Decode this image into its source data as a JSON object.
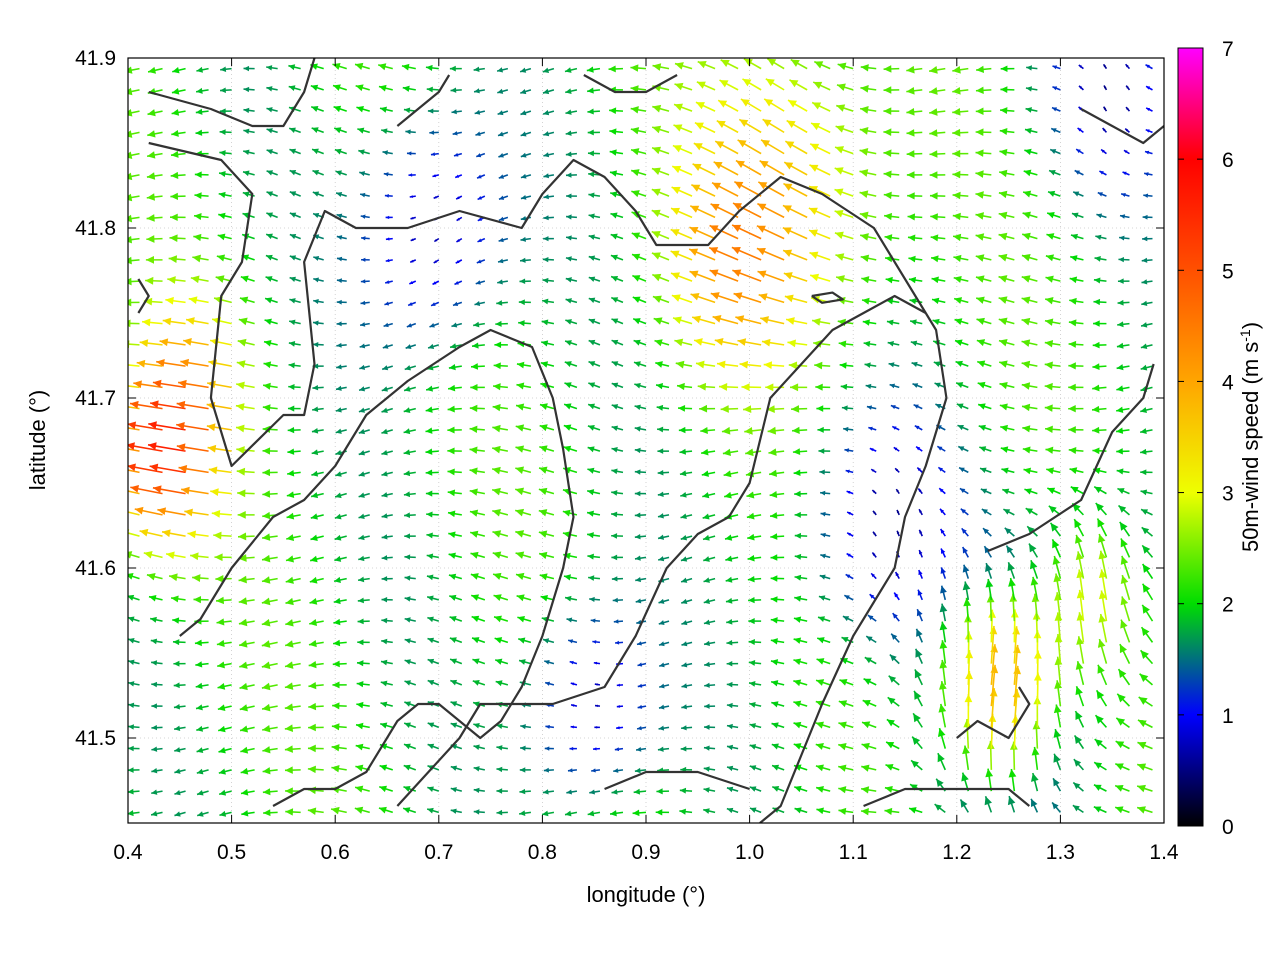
{
  "chart_data": {
    "type": "vector field",
    "xlabel": "longitude (°)",
    "ylabel": "latitude (°)",
    "xlim": [
      0.4,
      1.4
    ],
    "ylim": [
      41.45,
      41.9
    ],
    "xticks": [
      0.4,
      0.5,
      0.6,
      0.7,
      0.8,
      0.9,
      1.0,
      1.1,
      1.2,
      1.3,
      1.4
    ],
    "xtick_labels": [
      "0.4",
      "0.5",
      "0.6",
      "0.7",
      "0.8",
      "0.9",
      "1.0",
      "1.1",
      "1.2",
      "1.3",
      "1.4"
    ],
    "yticks": [
      41.5,
      41.6,
      41.7,
      41.8,
      41.9
    ],
    "ytick_labels": [
      "41.5",
      "41.6",
      "41.7",
      "41.8",
      "41.9"
    ],
    "grid": "dotted",
    "colorbar": {
      "label_main": "50m-wind speed (m s",
      "label_sup": "-1",
      "label_end": ")",
      "min": 0,
      "max": 7,
      "ticks": [
        0,
        1,
        2,
        3,
        4,
        5,
        6,
        7
      ],
      "tick_labels": [
        "0",
        "1",
        "2",
        "3",
        "4",
        "5",
        "6",
        "7"
      ],
      "palette": [
        {
          "v": 0,
          "c": "#000000"
        },
        {
          "v": 1,
          "c": "#0000ff"
        },
        {
          "v": 2,
          "c": "#00dd00"
        },
        {
          "v": 3,
          "c": "#eeff00"
        },
        {
          "v": 4,
          "c": "#ffa500"
        },
        {
          "v": 5,
          "c": "#ff5000"
        },
        {
          "v": 6,
          "c": "#ff0000"
        },
        {
          "v": 7,
          "c": "#ff00ff"
        }
      ]
    },
    "vector_field": {
      "nx": 45,
      "ny": 36,
      "arrow_length_per_ms": 0.0065,
      "base_wind": {
        "u": -2.0,
        "v": 0.05
      },
      "features": [
        {
          "lon": 0.44,
          "lat": 41.66,
          "r": 0.05,
          "du": -3.0,
          "dv": 0.2
        },
        {
          "lon": 0.47,
          "lat": 41.71,
          "r": 0.05,
          "du": -1.5,
          "dv": 0.0
        },
        {
          "lon": 1.05,
          "lat": 41.82,
          "r": 0.09,
          "du": -1.5,
          "dv": 1.2
        },
        {
          "lon": 0.99,
          "lat": 41.77,
          "r": 0.06,
          "du": -1.2,
          "dv": 0.4
        },
        {
          "lon": 1.24,
          "lat": 41.52,
          "r": 0.07,
          "du": 2.2,
          "dv": 4.0
        },
        {
          "lon": 1.34,
          "lat": 41.58,
          "r": 0.06,
          "du": 1.5,
          "dv": 2.8
        },
        {
          "lon": 0.7,
          "lat": 41.8,
          "r": 0.07,
          "du": 1.7,
          "dv": 0.0
        },
        {
          "lon": 0.85,
          "lat": 41.52,
          "r": 0.06,
          "du": 1.6,
          "dv": 0.3
        },
        {
          "lon": 1.13,
          "lat": 41.62,
          "r": 0.07,
          "du": 1.6,
          "dv": 0.0
        },
        {
          "lon": 1.35,
          "lat": 41.88,
          "r": 0.06,
          "du": 1.3,
          "dv": 0.0
        }
      ]
    },
    "contours": [
      [
        [
          0.42,
          41.88
        ],
        [
          0.48,
          41.87
        ],
        [
          0.52,
          41.86
        ],
        [
          0.55,
          41.86
        ],
        [
          0.57,
          41.88
        ],
        [
          0.58,
          41.9
        ]
      ],
      [
        [
          0.42,
          41.85
        ],
        [
          0.49,
          41.84
        ],
        [
          0.52,
          41.82
        ],
        [
          0.51,
          41.78
        ],
        [
          0.49,
          41.76
        ],
        [
          0.48,
          41.7
        ],
        [
          0.49,
          41.68
        ],
        [
          0.5,
          41.66
        ],
        [
          0.55,
          41.69
        ],
        [
          0.57,
          41.69
        ],
        [
          0.58,
          41.72
        ],
        [
          0.57,
          41.78
        ],
        [
          0.59,
          41.81
        ],
        [
          0.62,
          41.8
        ],
        [
          0.67,
          41.8
        ],
        [
          0.72,
          41.81
        ],
        [
          0.78,
          41.8
        ],
        [
          0.8,
          41.82
        ],
        [
          0.83,
          41.84
        ],
        [
          0.86,
          41.83
        ],
        [
          0.89,
          41.81
        ],
        [
          0.91,
          41.79
        ],
        [
          0.96,
          41.79
        ],
        [
          0.99,
          41.81
        ],
        [
          1.03,
          41.83
        ],
        [
          1.07,
          41.82
        ],
        [
          1.12,
          41.8
        ],
        [
          1.15,
          41.77
        ],
        [
          1.18,
          41.74
        ],
        [
          1.19,
          41.7
        ],
        [
          1.17,
          41.66
        ],
        [
          1.15,
          41.63
        ],
        [
          1.14,
          41.6
        ],
        [
          1.12,
          41.58
        ],
        [
          1.1,
          41.56
        ],
        [
          1.07,
          41.52
        ],
        [
          1.05,
          41.49
        ],
        [
          1.03,
          41.46
        ],
        [
          1.01,
          41.45
        ]
      ],
      [
        [
          0.45,
          41.56
        ],
        [
          0.47,
          41.57
        ],
        [
          0.5,
          41.6
        ],
        [
          0.54,
          41.63
        ],
        [
          0.57,
          41.64
        ],
        [
          0.6,
          41.66
        ],
        [
          0.63,
          41.69
        ],
        [
          0.67,
          41.71
        ],
        [
          0.72,
          41.73
        ],
        [
          0.75,
          41.74
        ],
        [
          0.79,
          41.73
        ],
        [
          0.81,
          41.7
        ],
        [
          0.82,
          41.67
        ],
        [
          0.83,
          41.63
        ],
        [
          0.82,
          41.6
        ],
        [
          0.8,
          41.56
        ],
        [
          0.78,
          41.53
        ],
        [
          0.76,
          41.51
        ],
        [
          0.74,
          41.5
        ],
        [
          0.72,
          41.51
        ],
        [
          0.7,
          41.52
        ],
        [
          0.68,
          41.52
        ],
        [
          0.66,
          41.51
        ],
        [
          0.63,
          41.48
        ],
        [
          0.6,
          41.47
        ],
        [
          0.57,
          41.47
        ],
        [
          0.54,
          41.46
        ]
      ],
      [
        [
          0.66,
          41.46
        ],
        [
          0.69,
          41.48
        ],
        [
          0.72,
          41.5
        ],
        [
          0.74,
          41.52
        ],
        [
          0.77,
          41.52
        ],
        [
          0.81,
          41.52
        ],
        [
          0.86,
          41.53
        ],
        [
          0.89,
          41.56
        ],
        [
          0.92,
          41.6
        ],
        [
          0.95,
          41.62
        ],
        [
          0.98,
          41.63
        ],
        [
          1.0,
          41.65
        ],
        [
          1.02,
          41.7
        ],
        [
          1.05,
          41.72
        ],
        [
          1.08,
          41.74
        ],
        [
          1.11,
          41.75
        ],
        [
          1.14,
          41.76
        ],
        [
          1.17,
          41.75
        ]
      ],
      [
        [
          0.86,
          41.47
        ],
        [
          0.9,
          41.48
        ],
        [
          0.95,
          41.48
        ],
        [
          1.0,
          41.47
        ]
      ],
      [
        [
          1.11,
          41.46
        ],
        [
          1.15,
          41.47
        ],
        [
          1.2,
          41.47
        ],
        [
          1.25,
          41.47
        ],
        [
          1.27,
          41.46
        ]
      ],
      [
        [
          1.23,
          41.61
        ],
        [
          1.27,
          41.62
        ],
        [
          1.32,
          41.64
        ],
        [
          1.35,
          41.68
        ],
        [
          1.38,
          41.7
        ],
        [
          1.39,
          41.72
        ]
      ],
      [
        [
          1.2,
          41.5
        ],
        [
          1.22,
          41.51
        ],
        [
          1.25,
          41.5
        ],
        [
          1.27,
          41.52
        ],
        [
          1.26,
          41.53
        ]
      ],
      [
        [
          1.06,
          41.76
        ],
        [
          1.08,
          41.762
        ],
        [
          1.09,
          41.758
        ],
        [
          1.07,
          41.756
        ],
        [
          1.06,
          41.76
        ]
      ],
      [
        [
          0.66,
          41.86
        ],
        [
          0.68,
          41.87
        ],
        [
          0.7,
          41.88
        ],
        [
          0.71,
          41.89
        ]
      ],
      [
        [
          0.84,
          41.89
        ],
        [
          0.87,
          41.88
        ],
        [
          0.9,
          41.88
        ],
        [
          0.93,
          41.89
        ]
      ],
      [
        [
          1.32,
          41.87
        ],
        [
          1.35,
          41.86
        ],
        [
          1.38,
          41.85
        ],
        [
          1.4,
          41.86
        ]
      ],
      [
        [
          0.41,
          41.77
        ],
        [
          0.42,
          41.76
        ],
        [
          0.41,
          41.75
        ]
      ]
    ]
  }
}
